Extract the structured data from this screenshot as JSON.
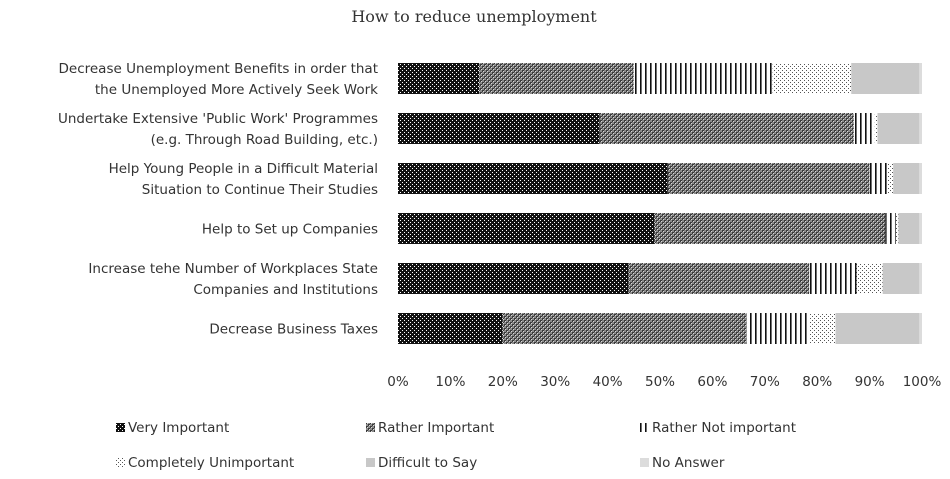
{
  "chart_data": {
    "type": "bar",
    "orientation": "horizontal",
    "stacked": "100%",
    "title": "How to reduce unemployment",
    "categories": [
      [
        "Decrease Unemployment Benefits in order that",
        "the Unemployed More Actively Seek Work"
      ],
      [
        "Undertake Extensive 'Public Work' Programmes",
        "(e.g. Through Road Building, etc.)"
      ],
      [
        "Help Young People in a Difficult Material",
        "Situation to Continue Their Studies"
      ],
      [
        "Help to Set up Companies"
      ],
      [
        "Increase tehe Number of Workplaces State",
        "Companies and Institutions"
      ],
      [
        "Decrease  Business Taxes"
      ]
    ],
    "series": [
      {
        "name": "Very Important",
        "values": [
          15.5,
          38.5,
          51.5,
          49,
          44,
          20
        ],
        "pattern": "very-important-pattern"
      },
      {
        "name": "Rather Important",
        "values": [
          29.5,
          48.5,
          38.5,
          44,
          34.5,
          46.5
        ],
        "pattern": "rather-important-pattern"
      },
      {
        "name": "Rather Not important",
        "values": [
          26.5,
          4,
          3.5,
          2,
          9,
          12
        ],
        "pattern": "rather-not-pattern"
      },
      {
        "name": "Completely Unimportant",
        "values": [
          15,
          0.5,
          1,
          0.5,
          5,
          5
        ],
        "pattern": "completely-unimportant-pattern"
      },
      {
        "name": "Difficult to Say",
        "values": [
          13,
          8,
          5,
          4,
          7,
          16
        ],
        "pattern": "difficult-pattern"
      },
      {
        "name": "No Answer",
        "values": [
          0.5,
          0.5,
          0.5,
          0.5,
          0.5,
          0.5
        ],
        "pattern": "no-answer-pattern"
      }
    ],
    "xlim": [
      0,
      100
    ],
    "xticks": [
      "0%",
      "10%",
      "20%",
      "30%",
      "40%",
      "50%",
      "60%",
      "70%",
      "80%",
      "90%",
      "100%"
    ],
    "grid": false,
    "legend_position": "bottom"
  }
}
